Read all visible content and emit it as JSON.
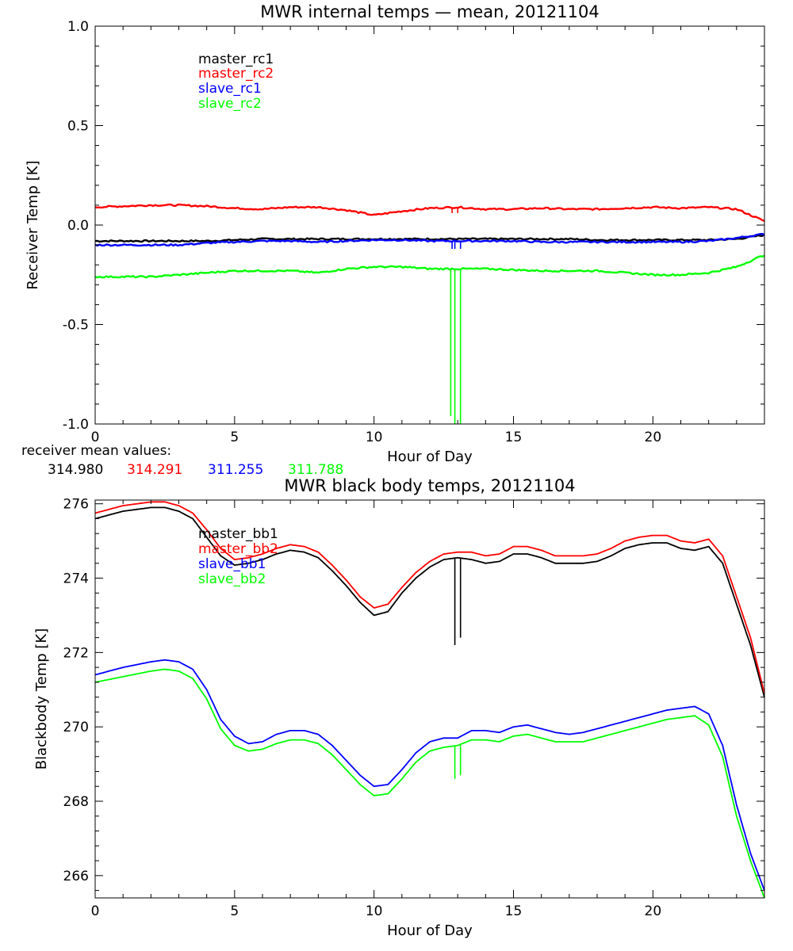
{
  "chart_data": [
    {
      "type": "line",
      "title": "MWR internal temps — mean, 20121104",
      "xlabel": "Hour of Day",
      "ylabel": "Receiver Temp [K]",
      "xlim": [
        0,
        24
      ],
      "ylim": [
        -1.0,
        1.0
      ],
      "xticks": [
        0,
        5,
        10,
        15,
        20
      ],
      "xtick_labels": [
        "0",
        "5",
        "10",
        "15",
        "20"
      ],
      "yticks": [
        -1.0,
        -0.5,
        0.0,
        0.5,
        1.0
      ],
      "ytick_labels": [
        "-1.0",
        "-0.5",
        "0.0",
        "0.5",
        "1.0"
      ],
      "grid": false,
      "legend_position": "top-left",
      "x": [
        0,
        1,
        2,
        3,
        4,
        5,
        6,
        7,
        8,
        9,
        10,
        11,
        12,
        13,
        14,
        15,
        16,
        17,
        18,
        19,
        20,
        21,
        22,
        23,
        24
      ],
      "series": [
        {
          "name": "master_rc1",
          "color": "#000000",
          "values": [
            -0.08,
            -0.08,
            -0.08,
            -0.08,
            -0.08,
            -0.075,
            -0.07,
            -0.07,
            -0.07,
            -0.07,
            -0.07,
            -0.07,
            -0.07,
            -0.07,
            -0.07,
            -0.07,
            -0.07,
            -0.07,
            -0.075,
            -0.075,
            -0.075,
            -0.075,
            -0.075,
            -0.07,
            -0.05
          ],
          "spikes": []
        },
        {
          "name": "master_rc2",
          "color": "#ff0000",
          "values": [
            0.09,
            0.095,
            0.1,
            0.1,
            0.095,
            0.085,
            0.08,
            0.09,
            0.09,
            0.075,
            0.05,
            0.07,
            0.085,
            0.09,
            0.08,
            0.08,
            0.085,
            0.08,
            0.08,
            0.085,
            0.09,
            0.085,
            0.09,
            0.08,
            0.02
          ],
          "spikes": [
            {
              "x": 12.8,
              "y": 0.06
            },
            {
              "x": 13.0,
              "y": 0.06
            }
          ]
        },
        {
          "name": "slave_rc1",
          "color": "#0000ff",
          "values": [
            -0.1,
            -0.1,
            -0.1,
            -0.1,
            -0.09,
            -0.085,
            -0.08,
            -0.08,
            -0.085,
            -0.08,
            -0.075,
            -0.075,
            -0.08,
            -0.08,
            -0.08,
            -0.08,
            -0.085,
            -0.085,
            -0.085,
            -0.085,
            -0.085,
            -0.085,
            -0.08,
            -0.065,
            -0.045
          ],
          "spikes": [
            {
              "x": 12.8,
              "y": -0.12
            },
            {
              "x": 12.9,
              "y": -0.12
            },
            {
              "x": 13.1,
              "y": -0.12
            }
          ]
        },
        {
          "name": "slave_rc2",
          "color": "#00ff00",
          "values": [
            -0.26,
            -0.26,
            -0.26,
            -0.25,
            -0.24,
            -0.23,
            -0.23,
            -0.23,
            -0.24,
            -0.22,
            -0.21,
            -0.21,
            -0.22,
            -0.22,
            -0.22,
            -0.225,
            -0.23,
            -0.23,
            -0.23,
            -0.24,
            -0.25,
            -0.25,
            -0.24,
            -0.21,
            -0.15
          ],
          "spikes": [
            {
              "x": 12.75,
              "y": -0.96
            },
            {
              "x": 12.9,
              "y": -1.0
            },
            {
              "x": 13.1,
              "y": -1.0
            }
          ]
        }
      ],
      "annotation": {
        "label": "receiver mean values:",
        "values": [
          {
            "text": "314.980",
            "color": "#000000"
          },
          {
            "text": "314.291",
            "color": "#ff0000"
          },
          {
            "text": "311.255",
            "color": "#0000ff"
          },
          {
            "text": "311.788",
            "color": "#00ff00"
          }
        ]
      }
    },
    {
      "type": "line",
      "title": "MWR black body temps, 20121104",
      "xlabel": "Hour of Day",
      "ylabel": "Blackbody Temp [K]",
      "xlim": [
        0,
        24
      ],
      "ylim": [
        265.4,
        276.1
      ],
      "xticks": [
        0,
        5,
        10,
        15,
        20
      ],
      "xtick_labels": [
        "0",
        "5",
        "10",
        "15",
        "20"
      ],
      "yticks": [
        266,
        268,
        270,
        272,
        274,
        276
      ],
      "ytick_labels": [
        "266",
        "268",
        "270",
        "272",
        "274",
        "276"
      ],
      "grid": false,
      "legend_position": "top-left",
      "x": [
        0,
        1,
        2,
        2.5,
        3,
        3.5,
        4,
        4.5,
        5,
        5.5,
        6,
        6.5,
        7,
        7.5,
        8,
        8.5,
        9,
        9.5,
        10,
        10.5,
        11,
        11.5,
        12,
        12.5,
        13,
        13.5,
        14,
        14.5,
        15,
        15.5,
        16,
        16.5,
        17,
        17.5,
        18,
        18.5,
        19,
        19.5,
        20,
        20.5,
        21,
        21.5,
        22,
        22.5,
        23,
        23.5,
        24
      ],
      "series": [
        {
          "name": "master_bb1",
          "color": "#000000",
          "values": [
            275.6,
            275.8,
            275.9,
            275.9,
            275.8,
            275.6,
            275.1,
            274.6,
            274.35,
            274.4,
            274.5,
            274.65,
            274.75,
            274.7,
            274.55,
            274.2,
            273.8,
            273.35,
            273.0,
            273.1,
            273.6,
            274.0,
            274.3,
            274.5,
            274.55,
            274.5,
            274.4,
            274.45,
            274.65,
            274.65,
            274.55,
            274.4,
            274.4,
            274.4,
            274.45,
            274.6,
            274.8,
            274.9,
            274.95,
            274.95,
            274.8,
            274.75,
            274.85,
            274.4,
            273.3,
            272.2,
            270.8
          ],
          "spikes": [
            {
              "x": 12.9,
              "y": 272.2
            },
            {
              "x": 13.1,
              "y": 272.4
            }
          ]
        },
        {
          "name": "master_bb2",
          "color": "#ff0000",
          "values": [
            275.75,
            275.95,
            276.05,
            276.05,
            275.95,
            275.75,
            275.3,
            274.8,
            274.5,
            274.55,
            274.65,
            274.8,
            274.9,
            274.85,
            274.7,
            274.35,
            273.95,
            273.5,
            273.2,
            273.3,
            273.75,
            274.15,
            274.45,
            274.65,
            274.7,
            274.7,
            274.6,
            274.65,
            274.85,
            274.85,
            274.75,
            274.6,
            274.6,
            274.6,
            274.65,
            274.8,
            275.0,
            275.1,
            275.15,
            275.15,
            275.0,
            274.95,
            275.05,
            274.6,
            273.5,
            272.4,
            270.9
          ],
          "spikes": []
        },
        {
          "name": "slave_bb1",
          "color": "#0000ff",
          "values": [
            271.4,
            271.6,
            271.75,
            271.8,
            271.75,
            271.55,
            271.0,
            270.2,
            269.75,
            269.55,
            269.6,
            269.8,
            269.9,
            269.9,
            269.8,
            269.5,
            269.1,
            268.7,
            268.4,
            268.45,
            268.85,
            269.3,
            269.6,
            269.7,
            269.7,
            269.9,
            269.9,
            269.85,
            270.0,
            270.05,
            269.95,
            269.85,
            269.8,
            269.85,
            269.95,
            270.05,
            270.15,
            270.25,
            270.35,
            270.45,
            270.5,
            270.55,
            270.35,
            269.5,
            267.9,
            266.6,
            265.6
          ],
          "spikes": []
        },
        {
          "name": "slave_bb2",
          "color": "#00ff00",
          "values": [
            271.2,
            271.35,
            271.5,
            271.55,
            271.5,
            271.3,
            270.75,
            269.95,
            269.5,
            269.35,
            269.4,
            269.55,
            269.65,
            269.65,
            269.55,
            269.25,
            268.85,
            268.45,
            268.15,
            268.2,
            268.6,
            269.05,
            269.35,
            269.45,
            269.5,
            269.65,
            269.65,
            269.6,
            269.75,
            269.8,
            269.7,
            269.6,
            269.6,
            269.6,
            269.7,
            269.8,
            269.9,
            270.0,
            270.1,
            270.2,
            270.25,
            270.3,
            270.05,
            269.2,
            267.6,
            266.4,
            265.4
          ],
          "spikes": [
            {
              "x": 12.9,
              "y": 268.6
            },
            {
              "x": 13.1,
              "y": 268.7
            }
          ]
        }
      ]
    }
  ]
}
